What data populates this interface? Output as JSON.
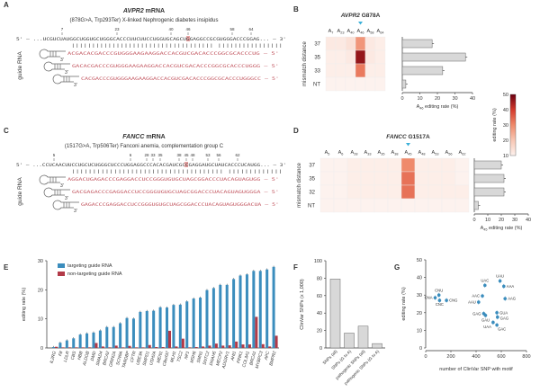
{
  "panels": {
    "A": {
      "letter": "A",
      "title_gene": "AVPR2",
      "title_suffix": " mRNA",
      "subtitle": "(878G>A, Trp293Ter) X-linked Nephrogenic diabetes insipidus",
      "positions": [
        "7",
        "23",
        "40",
        "46",
        "58",
        "64"
      ],
      "target_sequence": "5' – ...UCGUCUAUGGCUGGUGCUGGGCACCCUUCUUCCUGGUGCAGCUGGAGGCCGCGUGGGACCCGGAG... – 3'",
      "pairing": "||||||||||||||||||||||||||||||||||| ||||||||||||||||",
      "guide_label": "guide RNA",
      "guides": [
        "ACGACACGACCCGUGGGAAGAAGGACCACGUCGACACCCGGCGCACCCUG – 5'",
        "GACACGACCCGUGGGAAGAAGGACCACGUCGACACCCGGCGCACCCUGGG – 5'",
        "CACGACCCGUGGGAAGAAGGACCACGUCGACACCCGGCGCACCCUGGGCC – 5'"
      ]
    },
    "C": {
      "letter": "C",
      "title_gene": "FANCC",
      "title_suffix": " mRNA",
      "subtitle": "(1517G>A, Trp506Ter) Fanconi anemia, complementation group C",
      "positions": [
        "5",
        "6",
        "28",
        "33",
        "35",
        "38",
        "45",
        "48",
        "53",
        "56",
        "62"
      ],
      "target_sequence": "5' – ...CCUCAACUUCCUGCUCUGGGCUCCCUGGAGGCCCACACGAUCGCCGAGGAUGCUAUCACCCUCAUGG... – 3'",
      "pairing": "|||||||||||||||||||||||||||||||||||| |||||||||||||",
      "guide_label": "guide RNA",
      "guides": [
        "AGGACUGAGACCCGAGGACCUCCGGGUGUGCUAGCGGACCCUACAGUAGUGG – 5'",
        "GACGAGACCCGAGGACCUCCGGGUGUGCUAGCGGACCCUACAGUAGUGGGA – 5'",
        "GAGACCCGAGGACCUCCGGGUGUGCUAGCGGACCCUACAGUAGUGGGACUA – 5'"
      ]
    },
    "B": {
      "letter": "B",
      "title_gene": "AVPR2",
      "title_suffix": " G878A",
      "row_axis_label": "mismatch distance"
    },
    "D": {
      "letter": "D",
      "title_gene": "FANCC",
      "title_suffix": " G1517A",
      "row_axis_label": "mismatch distance"
    },
    "E": {
      "letter": "E"
    },
    "F": {
      "letter": "F"
    },
    "G": {
      "letter": "G"
    }
  },
  "colors": {
    "targeting": "#3b8dbd",
    "non_targeting": "#b23a48",
    "gray_bar": "#d8d8d8",
    "marker_arrow": "#3bb0d8",
    "highlight": "#e06a6a",
    "heat_scale": [
      "#fdf2ee",
      "#f8c7b4",
      "#ef8a6b",
      "#d43a2c",
      "#6b0010"
    ]
  },
  "colorbar": {
    "label": "editing rate (%)",
    "ticks": [
      "10",
      "20",
      "30",
      "40",
      "50"
    ],
    "range": [
      10,
      50
    ]
  },
  "chart_data": [
    {
      "panel": "B",
      "type": "heatmap",
      "columns": [
        "7",
        "23",
        "40",
        "46",
        "58",
        "64"
      ],
      "rows": [
        "37",
        "35",
        "33",
        "NT"
      ],
      "values": [
        [
          12,
          12,
          14,
          28,
          12,
          11
        ],
        [
          11,
          11,
          12,
          46,
          12,
          11
        ],
        [
          11,
          11,
          11,
          32,
          11,
          11
        ],
        [
          10,
          10,
          10,
          10,
          10,
          10
        ]
      ],
      "marked_column": "46"
    },
    {
      "panel": "B",
      "type": "bar",
      "orientation": "horizontal",
      "categories": [
        "37",
        "35",
        "33",
        "NT"
      ],
      "values": [
        17,
        36,
        23,
        2
      ],
      "xlabel_sub": "46",
      "xlabel": " editing rate (%)",
      "xlim": [
        0,
        40
      ],
      "xticks": [
        "0",
        "10",
        "20",
        "30",
        "40"
      ]
    },
    {
      "panel": "D",
      "type": "heatmap",
      "columns": [
        "5",
        "6",
        "28",
        "33",
        "35",
        "38",
        "45",
        "48",
        "53",
        "56",
        "62"
      ],
      "rows": [
        "37",
        "35",
        "32",
        "NT"
      ],
      "values": [
        [
          10,
          10,
          11,
          11,
          11,
          11,
          30,
          11,
          11,
          11,
          10
        ],
        [
          10,
          10,
          11,
          11,
          11,
          11,
          33,
          11,
          11,
          11,
          10
        ],
        [
          10,
          10,
          11,
          11,
          11,
          11,
          33,
          11,
          11,
          11,
          11
        ],
        [
          10,
          10,
          10,
          10,
          10,
          10,
          10,
          10,
          10,
          10,
          10
        ]
      ],
      "marked_column": "45"
    },
    {
      "panel": "D",
      "type": "bar",
      "orientation": "horizontal",
      "categories": [
        "37",
        "35",
        "32",
        "NT"
      ],
      "values": [
        20,
        22,
        22,
        3
      ],
      "xlabel_sub": "45",
      "xlabel": " editing rate (%)",
      "xlim": [
        0,
        40
      ],
      "xticks": [
        "0",
        "10",
        "20",
        "30",
        "40"
      ]
    },
    {
      "panel": "E",
      "type": "bar",
      "ylabel": "editing rate (%)",
      "ylim": [
        0,
        30
      ],
      "yticks": [
        "0",
        "10",
        "20",
        "30"
      ],
      "legend": "top-left",
      "categories": [
        "IL2RG",
        "F8",
        "LDLR",
        "CBS",
        "HBB",
        "ALDOB",
        "DMD",
        "SMAD4",
        "BRCA2",
        "GRIN2A",
        "SCN9A",
        "TARDBP",
        "CFTR",
        "UBE3A",
        "SMPD1",
        "USH2A",
        "MEN1",
        "C8orf37",
        "MLH1",
        "TSC2",
        "NF1",
        "MSH6",
        "SMN1",
        "SNTC2",
        "DNAH5",
        "MECP2",
        "ADGRV1",
        "AHI1",
        "PINK1",
        "COL3A1",
        "BRCA1",
        "MYBPC3",
        "APC",
        "BMPR2"
      ],
      "series": [
        {
          "name": "targeting guide RNA",
          "values": [
            0.3,
            1.8,
            2.6,
            3.3,
            4.6,
            5.0,
            5.3,
            6.0,
            7.2,
            7.2,
            8.5,
            10.3,
            10.1,
            12.4,
            12.7,
            12.8,
            14.0,
            13.9,
            14.8,
            14.9,
            16.0,
            17.0,
            17.3,
            19.9,
            20.6,
            21.7,
            21.7,
            23.7,
            24.9,
            25.3,
            26.5,
            26.5,
            27.0,
            27.9
          ]
        },
        {
          "name": "non-targeting guide RNA",
          "values": [
            0.4,
            0.2,
            0.2,
            0.2,
            0.2,
            0.2,
            1.7,
            0.5,
            0.2,
            0.8,
            0.2,
            0.7,
            0.2,
            0.2,
            1.0,
            0.3,
            0.3,
            5.9,
            0.5,
            3.2,
            0.2,
            0.3,
            0.5,
            0.8,
            1.5,
            0.8,
            0.9,
            2.2,
            1.2,
            1.2,
            10.7,
            1.3,
            0.5,
            4.2
          ]
        }
      ]
    },
    {
      "panel": "F",
      "type": "bar",
      "ylabel": "ClinVar SNPs (x 1,000)",
      "ylim": [
        0,
        100
      ],
      "yticks": [
        "0",
        "20",
        "40",
        "60",
        "80",
        "100"
      ],
      "categories": [
        "SNPs (all)",
        "SNPs (G to A)",
        "pathogenic SNPs (all)",
        "pathogenic SNPs (G to A)"
      ],
      "values": [
        79,
        17,
        25,
        5
      ]
    },
    {
      "panel": "G",
      "type": "scatter",
      "xlabel": "number of ClinVar SNP with motif",
      "ylabel": "editing rate (%)",
      "xlim": [
        0,
        800
      ],
      "ylim": [
        0,
        50
      ],
      "xticks": [
        "0",
        "200",
        "400",
        "600",
        "800"
      ],
      "yticks": [
        "0",
        "10",
        "20",
        "30",
        "40",
        "50"
      ],
      "points": [
        {
          "label": "CNU",
          "x": 105,
          "y": 30
        },
        {
          "label": "CNA",
          "x": 75,
          "y": 28.5
        },
        {
          "label": "CNC",
          "x": 110,
          "y": 27
        },
        {
          "label": "CNG",
          "x": 165,
          "y": 27
        },
        {
          "label": "UAC",
          "x": 470,
          "y": 35.5
        },
        {
          "label": "UAU",
          "x": 590,
          "y": 38
        },
        {
          "label": "AAA",
          "x": 620,
          "y": 35
        },
        {
          "label": "AAG",
          "x": 630,
          "y": 28
        },
        {
          "label": "AAC",
          "x": 450,
          "y": 29.5
        },
        {
          "label": "AAU",
          "x": 420,
          "y": 26
        },
        {
          "label": "GAG",
          "x": 460,
          "y": 19.5
        },
        {
          "label": "GAU",
          "x": 475,
          "y": 18.5
        },
        {
          "label": "GUA",
          "x": 565,
          "y": 20
        },
        {
          "label": "GAG",
          "x": 570,
          "y": 17.5
        },
        {
          "label": "UAA",
          "x": 535,
          "y": 14.5
        },
        {
          "label": "GAC",
          "x": 565,
          "y": 13
        }
      ]
    }
  ]
}
